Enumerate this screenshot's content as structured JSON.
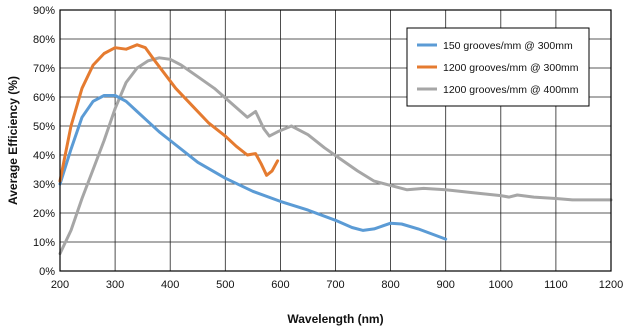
{
  "chart_data": {
    "type": "line",
    "xlabel": "Wavelength (nm)",
    "ylabel": "Average Efficiency (%)",
    "xlim": [
      200,
      1200
    ],
    "ylim": [
      0,
      90
    ],
    "x_ticks": [
      200,
      300,
      400,
      500,
      600,
      700,
      800,
      900,
      1000,
      1100,
      1200
    ],
    "y_ticks": [
      0,
      10,
      20,
      30,
      40,
      50,
      60,
      70,
      80,
      90
    ],
    "x_tick_labels": [
      "200",
      "300",
      "400",
      "500",
      "600",
      "700",
      "800",
      "900",
      "1000",
      "1100",
      "1200"
    ],
    "y_tick_labels": [
      "0%",
      "10%",
      "20%",
      "30%",
      "40%",
      "50%",
      "60%",
      "70%",
      "80%",
      "90%"
    ],
    "grid": true,
    "legend_position": "top-right",
    "series": [
      {
        "name": "150 grooves/mm @ 300mm",
        "color": "#5b9bd5",
        "points": [
          [
            200,
            30
          ],
          [
            220,
            42
          ],
          [
            240,
            53
          ],
          [
            260,
            58.5
          ],
          [
            280,
            60.5
          ],
          [
            300,
            60.5
          ],
          [
            320,
            58.5
          ],
          [
            340,
            55
          ],
          [
            360,
            51.5
          ],
          [
            380,
            48
          ],
          [
            400,
            45
          ],
          [
            450,
            37.5
          ],
          [
            500,
            32
          ],
          [
            550,
            27.5
          ],
          [
            600,
            24
          ],
          [
            650,
            21
          ],
          [
            700,
            17.5
          ],
          [
            730,
            15
          ],
          [
            750,
            14
          ],
          [
            770,
            14.5
          ],
          [
            800,
            16.5
          ],
          [
            820,
            16.2
          ],
          [
            850,
            14.5
          ],
          [
            900,
            11
          ]
        ]
      },
      {
        "name": "1200 grooves/mm @ 300mm",
        "color": "#e57b30",
        "points": [
          [
            200,
            31
          ],
          [
            220,
            50
          ],
          [
            240,
            63
          ],
          [
            260,
            71
          ],
          [
            280,
            75
          ],
          [
            300,
            77
          ],
          [
            320,
            76.5
          ],
          [
            340,
            78
          ],
          [
            355,
            77
          ],
          [
            370,
            73
          ],
          [
            390,
            68
          ],
          [
            410,
            63
          ],
          [
            440,
            57
          ],
          [
            470,
            51
          ],
          [
            500,
            46.5
          ],
          [
            520,
            43
          ],
          [
            540,
            40
          ],
          [
            555,
            40.5
          ],
          [
            565,
            37
          ],
          [
            575,
            33
          ],
          [
            585,
            34.5
          ],
          [
            595,
            38
          ]
        ]
      },
      {
        "name": "1200 grooves/mm @ 400mm",
        "color": "#a6a6a6",
        "points": [
          [
            200,
            6
          ],
          [
            220,
            14
          ],
          [
            240,
            25
          ],
          [
            260,
            35
          ],
          [
            280,
            45
          ],
          [
            300,
            56
          ],
          [
            320,
            65
          ],
          [
            340,
            70
          ],
          [
            360,
            72.5
          ],
          [
            380,
            73.5
          ],
          [
            400,
            73
          ],
          [
            420,
            71
          ],
          [
            450,
            67
          ],
          [
            480,
            63
          ],
          [
            510,
            58
          ],
          [
            540,
            53
          ],
          [
            555,
            55
          ],
          [
            570,
            49
          ],
          [
            580,
            46.5
          ],
          [
            595,
            48
          ],
          [
            620,
            50
          ],
          [
            650,
            47
          ],
          [
            680,
            42.5
          ],
          [
            710,
            38.5
          ],
          [
            740,
            34.5
          ],
          [
            770,
            31
          ],
          [
            800,
            29.5
          ],
          [
            830,
            28
          ],
          [
            860,
            28.5
          ],
          [
            900,
            28
          ],
          [
            950,
            27
          ],
          [
            1000,
            26
          ],
          [
            1015,
            25.5
          ],
          [
            1030,
            26.2
          ],
          [
            1060,
            25.5
          ],
          [
            1100,
            25
          ],
          [
            1130,
            24.5
          ],
          [
            1160,
            24.5
          ],
          [
            1200,
            24.5
          ]
        ]
      }
    ]
  }
}
